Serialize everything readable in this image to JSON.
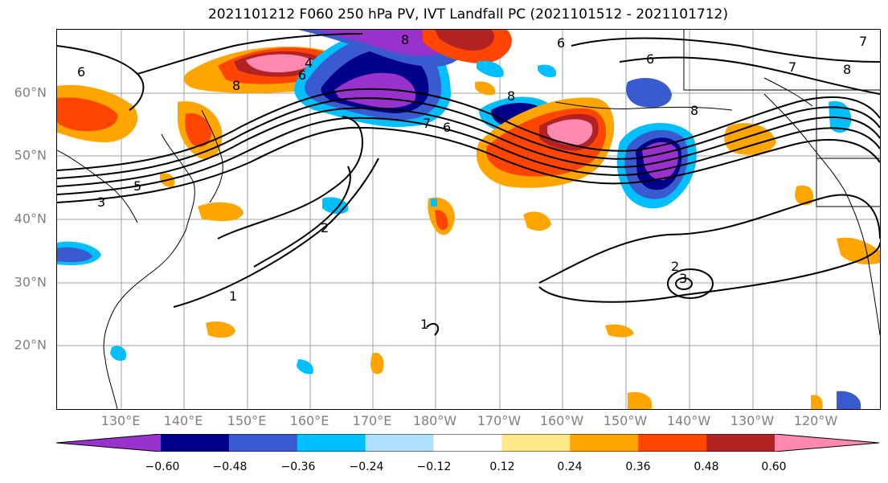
{
  "title": "2021101212 F060 250 hPa PV, IVT Landfall PC (2021101512 - 2021101712)",
  "latitude_labels": [
    "60°N",
    "50°N",
    "40°N",
    "30°N",
    "20°N"
  ],
  "longitude_labels": [
    "130°E",
    "140°E",
    "150°E",
    "160°E",
    "170°E",
    "180°W",
    "170°W",
    "160°W",
    "150°W",
    "140°W",
    "130°W",
    "120°W"
  ],
  "colorbar": {
    "ticks": [
      "−0.60",
      "−0.48",
      "−0.36",
      "−0.24",
      "−0.12",
      "0.12",
      "0.24",
      "0.36",
      "0.48",
      "0.60"
    ],
    "colors": [
      "#9932cc",
      "#00008b",
      "#3a5bd0",
      "#00bfff",
      "#b0e0ff",
      "#ffffff",
      "#ffe88a",
      "#ffa500",
      "#ff4500",
      "#b22222",
      "#ff88b0"
    ]
  },
  "contour_labels": [
    "6",
    "8",
    "6",
    "4",
    "6",
    "8",
    "6",
    "8",
    "8",
    "7",
    "8",
    "7",
    "5",
    "3",
    "2",
    "1",
    "1",
    "2",
    "3",
    "7",
    "6"
  ],
  "regions_colors": {
    "pink": "#ff88b0",
    "darkred": "#b22222",
    "red": "#ff4500",
    "orange": "#ffa500",
    "yellow": "#ffe88a",
    "purple": "#9932cc",
    "navy": "#00008b",
    "blue": "#3a5bd0",
    "cyan": "#00bfff",
    "lightblue": "#b0e0ff"
  }
}
